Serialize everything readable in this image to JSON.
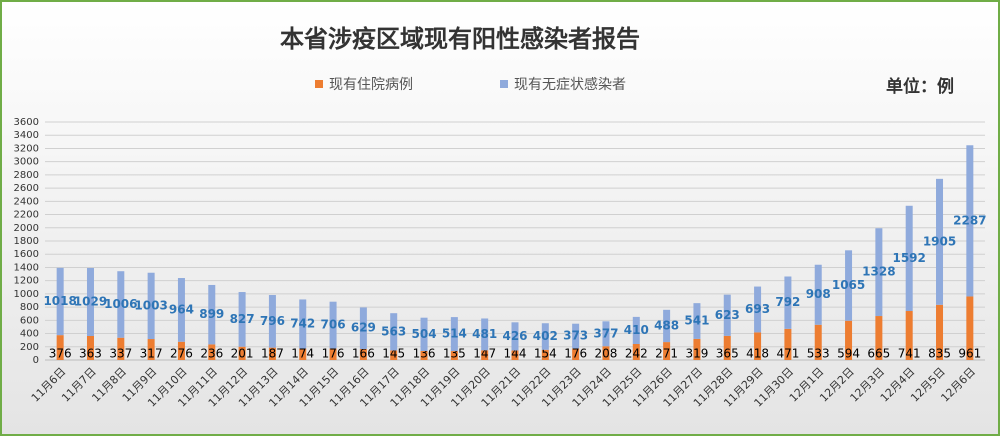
{
  "chart_data": {
    "type": "stacked_bar",
    "title": "本省涉疫区域现有阳性感染者报告",
    "unit_label": "单位：例",
    "categories": [
      "11月6日",
      "11月7日",
      "11月8日",
      "11月9日",
      "11月10日",
      "11月11日",
      "11月12日",
      "11月13日",
      "11月14日",
      "11月15日",
      "11月16日",
      "11月17日",
      "11月18日",
      "11月19日",
      "11月20日",
      "11月21日",
      "11月22日",
      "11月23日",
      "11月24日",
      "11月25日",
      "11月26日",
      "11月27日",
      "11月28日",
      "11月29日",
      "11月30日",
      "12月1日",
      "12月2日",
      "12月3日",
      "12月4日",
      "12月5日",
      "12月6日"
    ],
    "series": [
      {
        "name": "现有住院病例",
        "color": "#ed7d31",
        "label_color": "#000000",
        "values": [
          376,
          363,
          337,
          317,
          276,
          236,
          201,
          187,
          174,
          176,
          166,
          145,
          136,
          135,
          147,
          144,
          154,
          176,
          208,
          242,
          271,
          319,
          365,
          418,
          471,
          533,
          594,
          665,
          741,
          835,
          961
        ]
      },
      {
        "name": "现有无症状感染者",
        "color": "#8faadc",
        "label_color": "#2e75b6",
        "values": [
          1018,
          1029,
          1006,
          1003,
          964,
          899,
          827,
          796,
          742,
          706,
          629,
          563,
          504,
          514,
          481,
          426,
          402,
          373,
          377,
          410,
          488,
          541,
          623,
          693,
          792,
          908,
          1065,
          1328,
          1592,
          1905,
          2287
        ]
      }
    ],
    "ylim": [
      0,
      3600
    ],
    "yticks": [
      0,
      200,
      400,
      600,
      800,
      1000,
      1200,
      1400,
      1600,
      1800,
      2000,
      2200,
      2400,
      2600,
      2800,
      3000,
      3200,
      3400,
      3600
    ],
    "grid": true,
    "legend": "top"
  }
}
